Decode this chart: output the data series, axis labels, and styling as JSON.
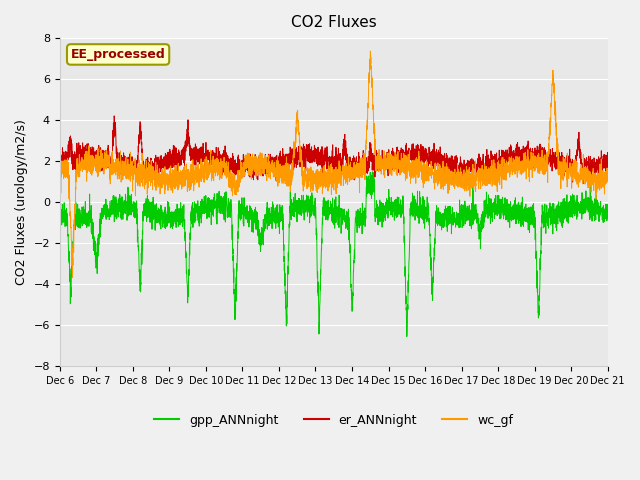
{
  "title": "CO2 Fluxes",
  "ylabel": "CO2 Fluxes (urology/m2/s)",
  "xlabel": "",
  "ylim": [
    -8,
    8
  ],
  "background_color": "#f0f0f0",
  "plot_bg_color": "#e8e8e8",
  "annotation_text": "EE_processed",
  "annotation_bg": "#ffffcc",
  "annotation_border": "#999900",
  "annotation_text_color": "#990000",
  "legend_labels": [
    "gpp_ANNnight",
    "er_ANNnight",
    "wc_gf"
  ],
  "line_colors": [
    "#00cc00",
    "#cc0000",
    "#ff9900"
  ],
  "x_tick_labels": [
    "Dec 6",
    "Dec 7",
    "Dec 8",
    "Dec 9",
    "Dec 10",
    "Dec 11",
    "Dec 12",
    "Dec 13",
    "Dec 14",
    "Dec 15",
    "Dec 16",
    "Dec 17",
    "Dec 18",
    "Dec 19",
    "Dec 20",
    "Dec 21"
  ],
  "n_points": 3840,
  "days": 15,
  "seed": 42
}
